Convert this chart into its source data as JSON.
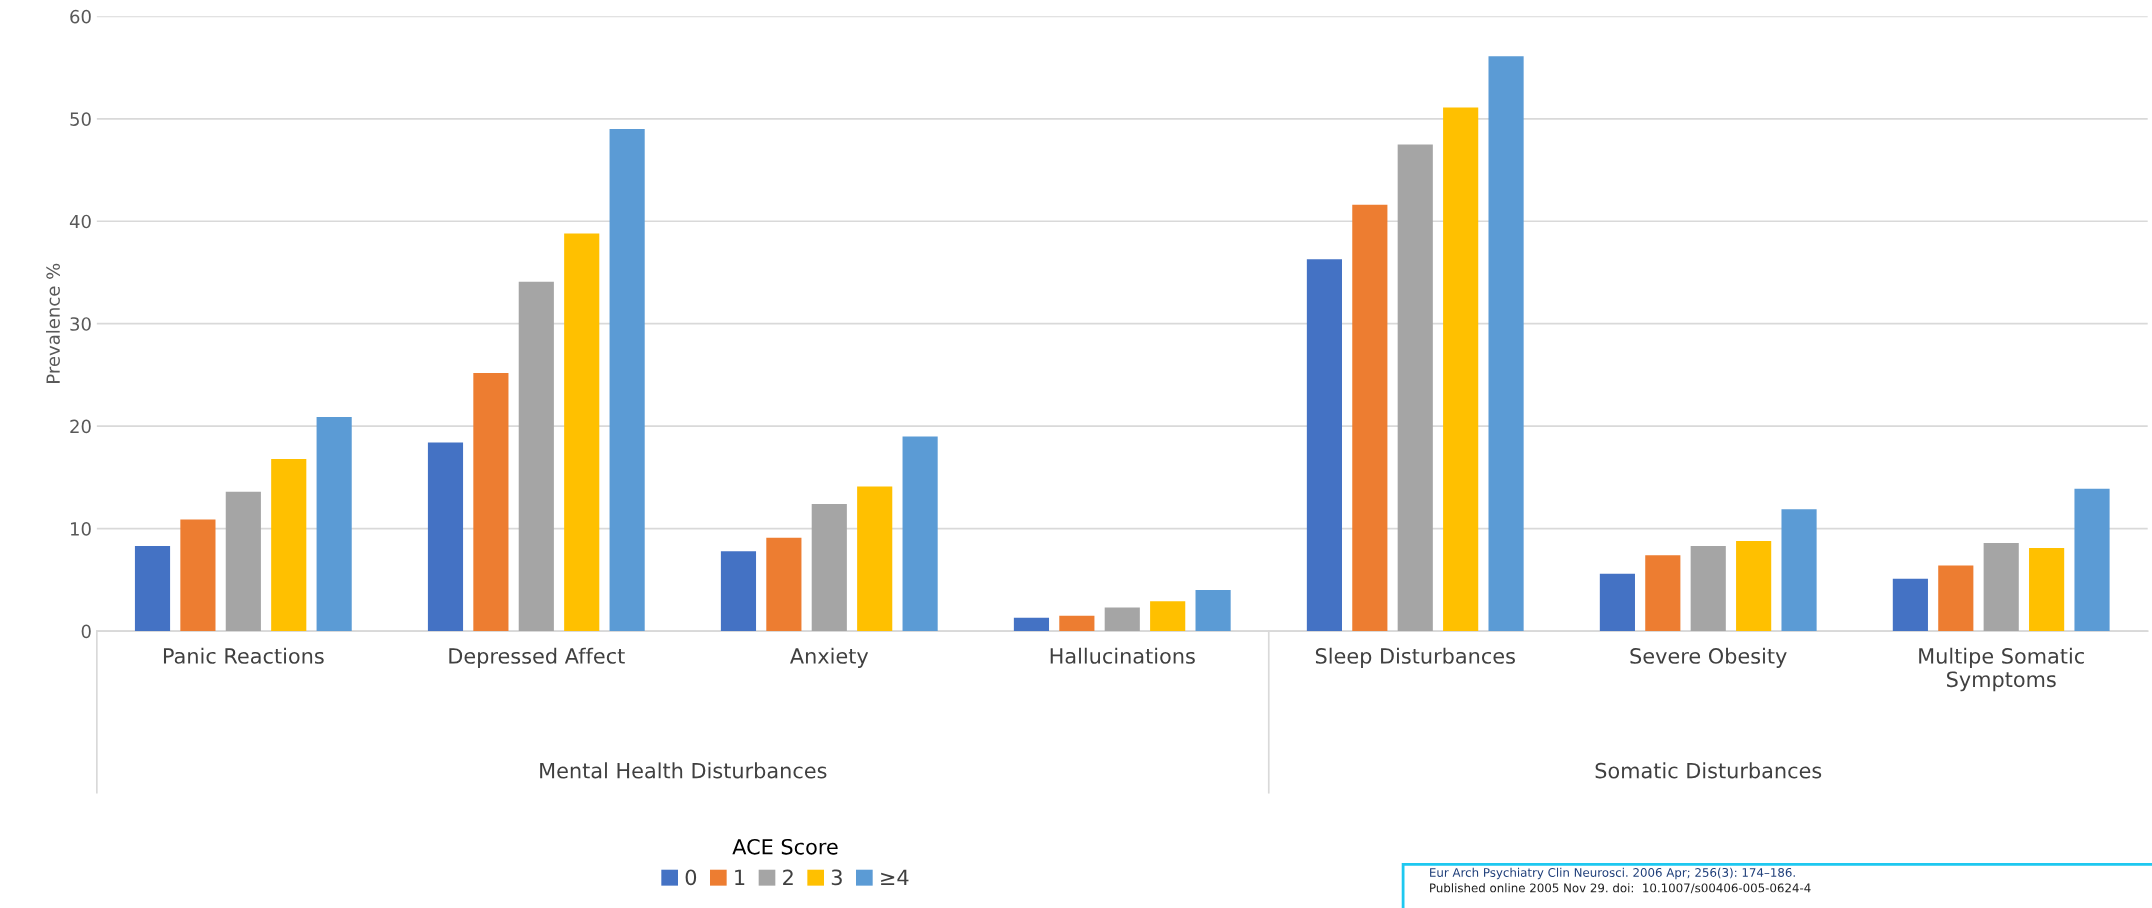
{
  "chart_data": {
    "type": "bar",
    "ylabel": "Prevalence %",
    "legend_title": "ACE Score",
    "categories": [
      "Panic Reactions",
      "Depressed Affect",
      "Anxiety",
      "Hallucinations",
      "Sleep Disturbances",
      "Severe Obesity",
      "Multipe Somatic\nSymptoms"
    ],
    "series": [
      {
        "name": "0",
        "color": "#4472c4",
        "values": [
          8.3,
          18.4,
          7.8,
          1.3,
          36.3,
          5.6,
          5.1
        ]
      },
      {
        "name": "1",
        "color": "#ed7d31",
        "values": [
          10.9,
          25.2,
          9.1,
          1.5,
          41.6,
          7.4,
          6.4
        ]
      },
      {
        "name": "2",
        "color": "#a5a5a5",
        "values": [
          13.6,
          34.1,
          12.4,
          2.3,
          47.5,
          8.3,
          8.6
        ]
      },
      {
        "name": "3",
        "color": "#ffc000",
        "values": [
          16.8,
          38.8,
          14.1,
          2.9,
          51.1,
          8.8,
          8.1
        ]
      },
      {
        "name": "≥4",
        "color": "#5b9bd5",
        "values": [
          20.9,
          49.0,
          19.0,
          4.0,
          56.1,
          11.9,
          13.9
        ]
      }
    ],
    "ylim": [
      0,
      60
    ],
    "yticks": [
      0,
      10,
      20,
      30,
      40,
      50,
      60
    ],
    "grid": "y",
    "legend": "bottom",
    "annotations": [
      "Mental Health Disturbances",
      "Somatic Disturbances",
      "Eur Arch Psychiatry Clin Neurosci. 2006 Apr; 256(3): 174–186.",
      "Published online 2005 Nov 29. doi:  10.1007/s00406-005-0624-4"
    ]
  }
}
